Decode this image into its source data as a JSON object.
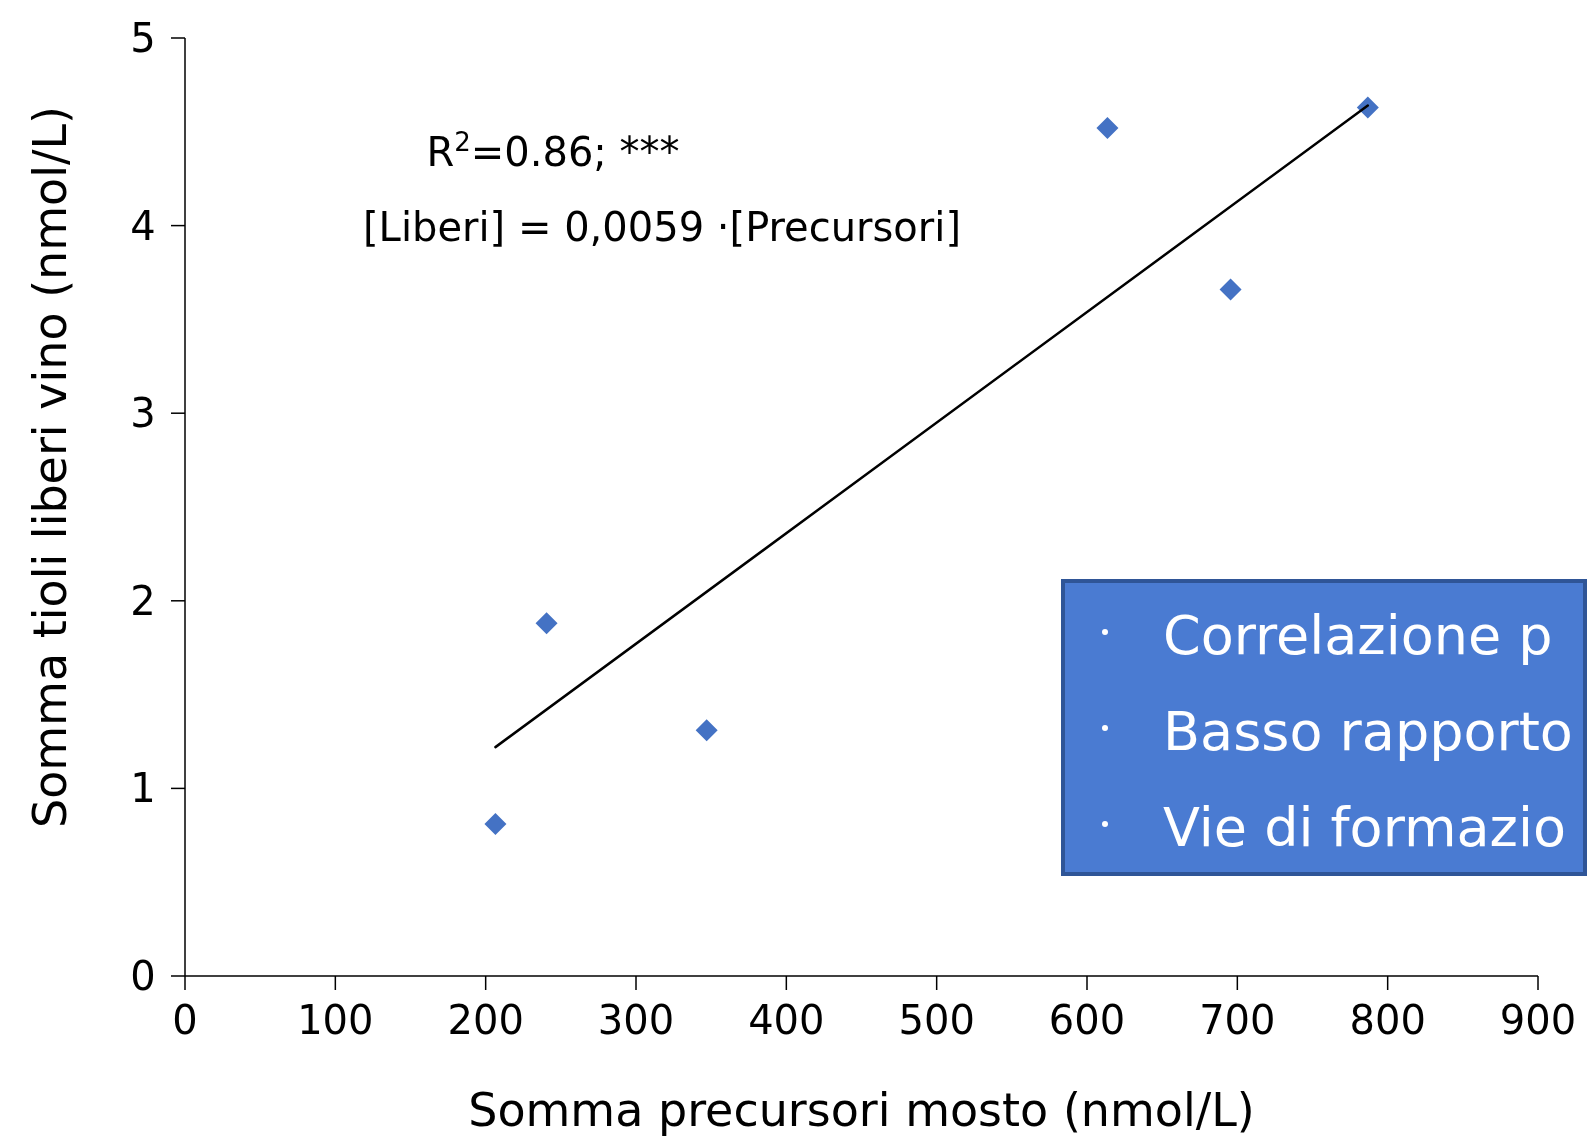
{
  "chart_data": {
    "type": "scatter",
    "xlabel": "Somma precursori mosto (nmol/L)",
    "ylabel": "Somma tioli liberi vino  (nmol/L)",
    "series": [
      {
        "color": "#4472c4",
        "marker": "diamond",
        "x": [
          206.5,
          240.5,
          347,
          613.6,
          695.5,
          786.8
        ],
        "values": [
          0.81,
          1.88,
          1.31,
          4.52,
          3.66,
          4.63
        ]
      },
      {
        "type": "line",
        "color": "#000000",
        "marker": "none",
        "line_style": "solid",
        "x": [
          206.5,
          786.8
        ],
        "values": [
          1.22,
          4.64
        ]
      }
    ],
    "xlim": [
      0,
      900
    ],
    "xticks": [
      0,
      100,
      200,
      300,
      400,
      500,
      600,
      700,
      800,
      900
    ],
    "ylim": [
      0,
      5
    ],
    "yticks": [
      0,
      1,
      2,
      3,
      4,
      5
    ],
    "grid": false,
    "annotations": [
      "R$^{2}$=0.86; ***",
      "[Liberi]  = 0,0059 ·[Precursori]",
      "Correlazione p",
      "Basso rapporto",
      "Vie di formazio"
    ]
  }
}
